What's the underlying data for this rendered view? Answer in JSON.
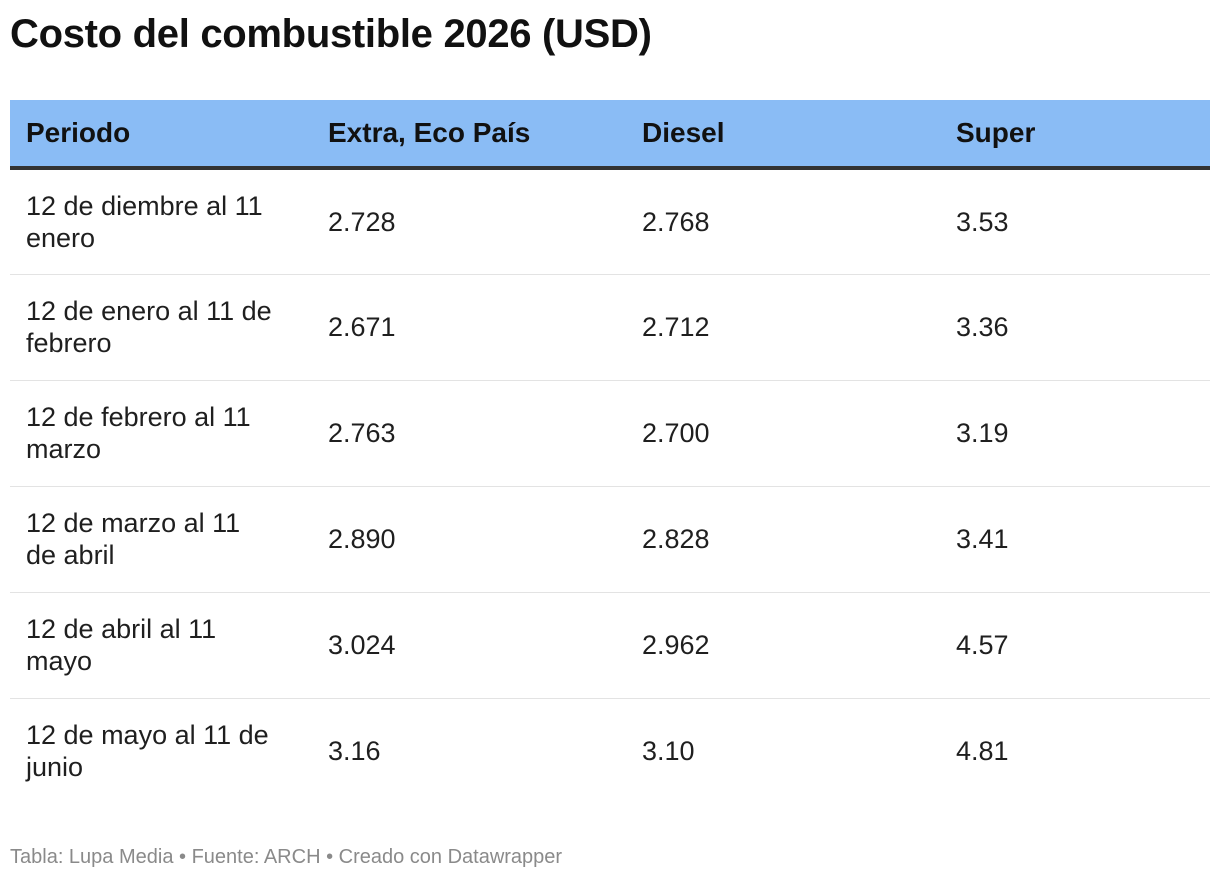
{
  "title": "Costo del combustible 2026 (USD)",
  "footer": "Tabla: Lupa Media • Fuente: ARCH • Creado con Datawrapper",
  "colors": {
    "header_bg": "#8abcf5",
    "header_rule": "#333333",
    "row_divider": "#e3e3e3",
    "footer_text": "#8a8a8a"
  },
  "chart_data": {
    "type": "table",
    "title": "Costo del combustible 2026 (USD)",
    "columns": [
      "Periodo",
      "Extra, Eco País",
      "Diesel",
      "Super"
    ],
    "rows": [
      [
        "12 de diembre al 11 enero",
        "2.728",
        "2.768",
        "3.53"
      ],
      [
        "12 de enero al 11 de febrero",
        "2.671",
        "2.712",
        "3.36"
      ],
      [
        "12 de febrero al 11 marzo",
        "2.763",
        "2.700",
        "3.19"
      ],
      [
        "12 de marzo al 11 de abril",
        "2.890",
        "2.828",
        "3.41"
      ],
      [
        "12 de abril al 11 mayo",
        "3.024",
        "2.962",
        "4.57"
      ],
      [
        "12 de mayo al 11 de junio",
        "3.16",
        "3.10",
        "4.81"
      ]
    ]
  }
}
